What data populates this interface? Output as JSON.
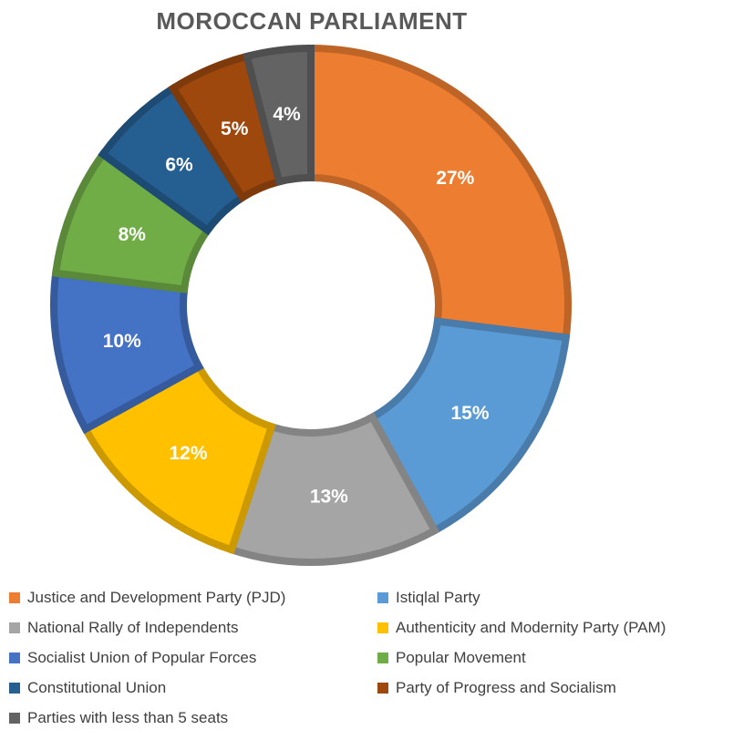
{
  "chart_data": {
    "type": "pie",
    "variant": "donut",
    "title": "MOROCCAN PARLIAMENT",
    "legend_position": "bottom",
    "slices": [
      {
        "name": "Justice and Development Party (PJD)",
        "value": 27,
        "label": "27%",
        "color": "#ED7D31"
      },
      {
        "name": "Istiqlal Party",
        "value": 15,
        "label": "15%",
        "color": "#5B9BD5"
      },
      {
        "name": "National Rally of Independents",
        "value": 13,
        "label": "13%",
        "color": "#A5A5A5"
      },
      {
        "name": "Authenticity and Modernity Party (PAM)",
        "value": 12,
        "label": "12%",
        "color": "#FFC000"
      },
      {
        "name": "Socialist Union of Popular Forces",
        "value": 10,
        "label": "10%",
        "color": "#4472C4"
      },
      {
        "name": "Popular Movement",
        "value": 8,
        "label": "8%",
        "color": "#70AD47"
      },
      {
        "name": "Constitutional Union",
        "value": 6,
        "label": "6%",
        "color": "#255E91"
      },
      {
        "name": "Party of Progress and Socialism",
        "value": 5,
        "label": "5%",
        "color": "#9E480E"
      },
      {
        "name": "Parties with less than 5 seats",
        "value": 4,
        "label": "4%",
        "color": "#636363"
      }
    ]
  }
}
